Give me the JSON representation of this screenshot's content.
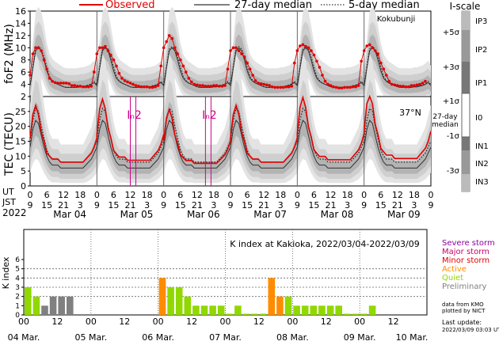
{
  "chart_data": [
    {
      "type": "line",
      "panel": "foF2",
      "ylabel": "foF2 (MHz)",
      "ylim": [
        2,
        16
      ],
      "yticks": [
        2,
        4,
        6,
        8,
        10,
        12,
        14,
        16
      ],
      "station": "Kokubunji",
      "x_range_hours": [
        0,
        144
      ],
      "series": [
        {
          "name": "Observed",
          "color": "#e00000",
          "style": "markers+line",
          "x": [
            0,
            1,
            2,
            3,
            4,
            5,
            6,
            7,
            8,
            9,
            10,
            11,
            12,
            13,
            14,
            15,
            16,
            17,
            18,
            19,
            20,
            21,
            22,
            23,
            24,
            25,
            26,
            27,
            28,
            29,
            30,
            31,
            32,
            33,
            34,
            35,
            36,
            37,
            38,
            39,
            40,
            41,
            42,
            43,
            44,
            45,
            46,
            47,
            48,
            49,
            50,
            51,
            52,
            53,
            54,
            55,
            56,
            57,
            58,
            59,
            60,
            61,
            62,
            63,
            64,
            65,
            66,
            67,
            68,
            69,
            70,
            71,
            72,
            73,
            74,
            75,
            76,
            77,
            78,
            79,
            80,
            81,
            82,
            83,
            84,
            85,
            86,
            87,
            88,
            89,
            90,
            91,
            92,
            93,
            94,
            95,
            96,
            97,
            98,
            99,
            100,
            101,
            102,
            103,
            104,
            105,
            106,
            107,
            108,
            109,
            110,
            111,
            112,
            113,
            114,
            115,
            116,
            117,
            118,
            119,
            120,
            121,
            122,
            123,
            124,
            125,
            126,
            127,
            128,
            129,
            130,
            131,
            132,
            133,
            134,
            135,
            136,
            137,
            138,
            139,
            140,
            141,
            142,
            143
          ],
          "y": [
            5.5,
            9.0,
            10.0,
            10.0,
            9.5,
            8.0,
            6.5,
            5.0,
            4.5,
            4.3,
            4.2,
            4.2,
            4.2,
            4.2,
            4.1,
            3.8,
            3.8,
            3.7,
            3.7,
            3.6,
            3.6,
            3.6,
            3.7,
            6.0,
            9.0,
            10.0,
            10.0,
            10.2,
            9.5,
            8.8,
            8.0,
            7.0,
            5.8,
            5.0,
            4.6,
            4.4,
            4.2,
            4.0,
            3.8,
            3.7,
            3.6,
            3.6,
            3.6,
            3.5,
            3.5,
            3.6,
            3.8,
            7.0,
            10.0,
            11.0,
            12.0,
            11.5,
            10.0,
            9.0,
            8.0,
            7.0,
            6.0,
            5.0,
            4.4,
            4.0,
            3.9,
            3.8,
            3.8,
            3.7,
            3.7,
            3.7,
            3.8,
            3.8,
            3.7,
            3.7,
            3.8,
            6.5,
            9.5,
            10.0,
            10.0,
            9.5,
            9.0,
            8.5,
            7.5,
            6.5,
            5.5,
            4.6,
            4.2,
            4.1,
            4.0,
            3.9,
            3.8,
            3.6,
            3.5,
            3.5,
            3.5,
            3.5,
            3.6,
            3.6,
            3.7,
            7.5,
            9.5,
            10.3,
            10.5,
            10.2,
            10.0,
            9.5,
            8.8,
            7.8,
            6.8,
            5.5,
            4.5,
            4.0,
            3.8,
            3.6,
            3.5,
            3.4,
            3.4,
            3.5,
            3.5,
            3.5,
            3.6,
            3.6,
            3.8,
            7.8,
            9.5,
            10.3,
            10.5,
            10.0,
            9.5,
            9.0,
            7.5,
            6.5,
            5.5,
            4.5,
            4.0,
            3.9,
            3.8,
            3.7,
            3.7,
            3.6,
            3.6,
            3.8,
            3.8,
            3.9,
            4.0,
            4.2,
            4.5,
            null
          ]
        },
        {
          "name": "27-day median",
          "color": "#333333",
          "style": "solid",
          "y_daily": [
            3.8,
            6.5,
            9.5,
            10.0,
            9.5,
            8.0,
            6.2,
            5.0,
            4.5,
            4.2,
            4.0,
            3.8,
            3.6,
            3.5,
            3.5,
            3.5,
            3.5,
            3.5,
            3.6,
            3.6,
            3.7,
            3.8,
            4.0,
            4.3
          ]
        },
        {
          "name": "5-day median",
          "color": "#333333",
          "style": "dotted",
          "y_daily": [
            4.0,
            7.0,
            9.8,
            10.2,
            9.8,
            8.5,
            6.8,
            5.3,
            4.6,
            4.2,
            4.0,
            3.8,
            3.6,
            3.5,
            3.5,
            3.5,
            3.5,
            3.5,
            3.6,
            3.6,
            3.8,
            3.9,
            4.1,
            4.5
          ]
        }
      ]
    },
    {
      "type": "line",
      "panel": "TEC",
      "ylabel": "TEC (TECU)",
      "ylim": [
        0,
        30
      ],
      "yticks": [
        0,
        5,
        10,
        15,
        20,
        25
      ],
      "latitude_label": "37°N",
      "storm_markers": [
        {
          "label": "Iₙ2",
          "x_hours": [
            36,
            38
          ]
        },
        {
          "label": "Iₙ2",
          "x_hours": [
            63,
            65
          ]
        }
      ],
      "series": [
        {
          "name": "Observed",
          "color": "#e00000",
          "style": "solid",
          "y_daily": [
            16,
            24,
            27,
            24,
            18,
            15,
            11,
            10,
            9,
            9,
            9,
            8,
            8,
            8,
            8,
            8,
            8,
            8,
            8,
            8,
            9,
            10,
            11,
            13
          ]
        },
        {
          "name": "27-day median",
          "color": "#333333",
          "style": "solid",
          "y_daily": [
            13,
            19,
            22,
            21,
            17,
            13,
            10,
            8,
            7,
            7,
            7,
            6,
            6,
            6,
            6,
            6,
            6,
            6,
            6,
            6,
            7,
            8,
            9,
            11
          ]
        },
        {
          "name": "5-day median",
          "color": "#333333",
          "style": "dotted",
          "y_daily": [
            15,
            22,
            26,
            25,
            20,
            16,
            12,
            10,
            9,
            9,
            9,
            8,
            8,
            8,
            8,
            8,
            8,
            8,
            8,
            8,
            9,
            10,
            11,
            13
          ]
        }
      ]
    },
    {
      "type": "bar",
      "panel": "K index",
      "title": "K index at Kakioka, 2022/03/04-2022/03/09",
      "ylabel": "K index",
      "ylim": [
        0,
        6
      ],
      "hlines": [
        2,
        3,
        4,
        5
      ],
      "bin_hours": 3,
      "start_label": "04 Mar.",
      "values": [
        3,
        2,
        1,
        2,
        2,
        2,
        null,
        null,
        null,
        null,
        null,
        null,
        null,
        null,
        null,
        null,
        4,
        3,
        3,
        2,
        1,
        1,
        1,
        1,
        0,
        1,
        0,
        0,
        0,
        4,
        2,
        2,
        1,
        1,
        1,
        1,
        1,
        1,
        0,
        0,
        0,
        1,
        null,
        null,
        null,
        null,
        null,
        null
      ],
      "colors": [
        "quiet",
        "quiet",
        "prelim",
        "prelim",
        "prelim",
        "prelim",
        null,
        null,
        null,
        null,
        null,
        null,
        null,
        null,
        null,
        null,
        "minor",
        "quiet",
        "quiet",
        "quiet",
        "quiet",
        "quiet",
        "quiet",
        "quiet",
        "quiet",
        "quiet",
        "quiet",
        "quiet",
        "quiet",
        "minor",
        "minor",
        "quiet",
        "quiet",
        "quiet",
        "quiet",
        "quiet",
        "quiet",
        "quiet",
        "quiet",
        "quiet",
        "quiet",
        "quiet",
        null,
        null,
        null,
        null,
        null,
        null
      ],
      "x_labels": [
        "04 Mar.",
        "05 Mar.",
        "06 Mar.",
        "07 Mar.",
        "08 Mar.",
        "09 Mar.",
        "10 Mar."
      ],
      "hour_labels": [
        "00",
        "12"
      ]
    }
  ],
  "header": {
    "legend_observed": "Observed",
    "legend_27day": "27-day median",
    "legend_5day": "5-day median",
    "station": "Kokubunji"
  },
  "iscale": {
    "title": "I-scale",
    "sigma_labels": [
      "+5σ",
      "+3σ",
      "+1σ",
      "-1σ",
      "-3σ"
    ],
    "median_label": "27-day\nmedian",
    "levels": [
      "IP3",
      "IP2",
      "IP1",
      "I0",
      "IN1",
      "IN2",
      "IN3"
    ]
  },
  "axes": {
    "ut_label": "UT",
    "jst_label": "JST",
    "year": "2022",
    "ut_ticks": [
      "0",
      "6",
      "15",
      "18",
      "21",
      "3"
    ],
    "ut_row": [
      "0",
      "6",
      "12",
      "18",
      "0",
      "6",
      "12",
      "18",
      "0",
      "6",
      "12",
      "18",
      "0",
      "6",
      "12",
      "18",
      "0",
      "6",
      "12",
      "18",
      "0",
      "6",
      "12",
      "18",
      "0"
    ],
    "jst_row": [
      "9",
      "15",
      "21",
      "3",
      "9",
      "15",
      "21",
      "3",
      "9",
      "15",
      "21",
      "3",
      "9",
      "15",
      "21",
      "3",
      "9",
      "15",
      "21",
      "3",
      "9",
      "15",
      "21",
      "3",
      "9"
    ],
    "dates": [
      "Mar 04",
      "Mar 05",
      "Mar 06",
      "Mar 07",
      "Mar 08",
      "Mar 09"
    ]
  },
  "kpanel": {
    "legend": [
      {
        "label": "Severe storm",
        "color": "#8a00a0"
      },
      {
        "label": "Major storm",
        "color": "#d0006a"
      },
      {
        "label": "Minor storm",
        "color": "#e00000"
      },
      {
        "label": "Active",
        "color": "#ff8c00"
      },
      {
        "label": "Quiet",
        "color": "#90d800"
      },
      {
        "label": "Preliminary",
        "color": "#808080"
      }
    ],
    "credit1": "data from KMO",
    "credit2": "plotted by NICT",
    "updated_label": "Last update:",
    "updated_value": "2022/03/09 03:03 UT"
  }
}
